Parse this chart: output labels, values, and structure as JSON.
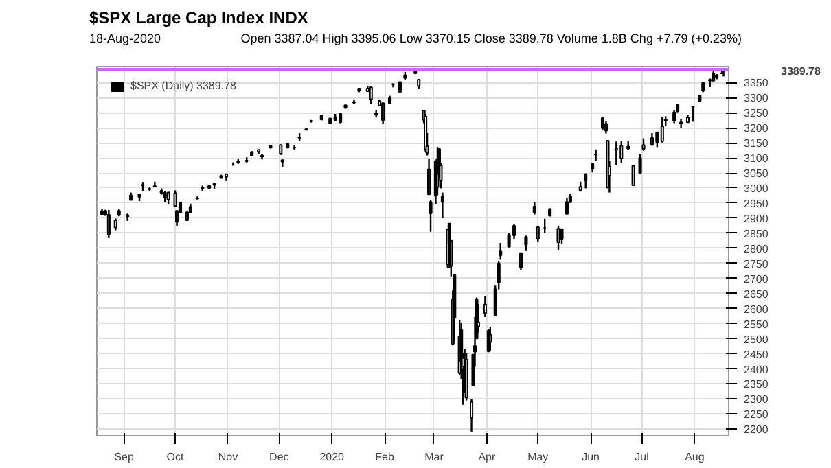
{
  "chart_data": {
    "type": "candlestick",
    "title": "$SPX Large Cap Index INDX",
    "subtitle": "18-Aug-2020",
    "annotations": [
      "Open 3387.04 High 3395.06 Low 3370.15 Close 3389.78 Volume 1.8B Chg +7.79 (+0.23%)",
      "3389.78"
    ],
    "series": [
      {
        "name": "$SPX (Daily) 3389.78",
        "color": "#000000",
        "ohlc": [
          [
            2913,
            2931,
            2913,
            2923
          ],
          [
            2910,
            2928,
            2909,
            2924
          ],
          [
            2911,
            2927,
            2834,
            2847
          ],
          [
            2893,
            2899,
            2860,
            2869
          ],
          [
            2910,
            2930,
            2906,
            2924
          ],
          [
            2910,
            2915,
            2891,
            2906
          ],
          [
            2960,
            2985,
            2960,
            2976
          ],
          [
            2971,
            2980,
            2957,
            2979
          ],
          [
            3010,
            3020,
            2991,
            3009
          ],
          [
            2996,
            3002,
            2990,
            2997
          ],
          [
            3007,
            3021,
            3003,
            3006
          ],
          [
            2984,
            2999,
            2978,
            2991
          ],
          [
            2968,
            2989,
            2953,
            2984
          ],
          [
            2985,
            2987,
            2945,
            2961
          ],
          [
            2983,
            2992,
            2938,
            2940
          ],
          [
            2924,
            2925,
            2874,
            2887
          ],
          [
            2918,
            2953,
            2917,
            2952
          ],
          [
            2920,
            2925,
            2892,
            2893
          ],
          [
            2918,
            2948,
            2917,
            2938
          ],
          [
            2965,
            2972,
            2962,
            2966
          ],
          [
            3001,
            3008,
            2991,
            2998
          ],
          [
            3000,
            3008,
            2998,
            3007
          ],
          [
            3014,
            3016,
            2997,
            3010
          ],
          [
            3033,
            3044,
            3032,
            3039
          ],
          [
            3046,
            3046,
            3023,
            3037
          ],
          [
            3078,
            3085,
            3074,
            3078
          ],
          [
            3087,
            3097,
            3080,
            3085
          ],
          [
            3089,
            3102,
            3085,
            3091
          ],
          [
            3107,
            3121,
            3105,
            3120
          ],
          [
            3127,
            3127,
            3113,
            3120
          ],
          [
            3108,
            3111,
            3095,
            3104
          ],
          [
            3134,
            3142,
            3131,
            3140
          ],
          [
            3143,
            3144,
            3110,
            3114
          ],
          [
            3087,
            3094,
            3070,
            3093
          ],
          [
            3134,
            3150,
            3134,
            3146
          ],
          [
            3135,
            3142,
            3126,
            3133
          ],
          [
            3167,
            3182,
            3156,
            3168
          ],
          [
            3195,
            3198,
            3191,
            3193
          ],
          [
            3223,
            3226,
            3217,
            3221
          ],
          [
            3227,
            3240,
            3227,
            3240
          ],
          [
            3215,
            3231,
            3212,
            3231
          ],
          [
            3226,
            3246,
            3222,
            3235
          ],
          [
            3218,
            3246,
            3215,
            3246
          ],
          [
            3266,
            3275,
            3263,
            3275
          ],
          [
            3285,
            3294,
            3278,
            3283
          ],
          [
            3323,
            3330,
            3318,
            3330
          ],
          [
            3330,
            3337,
            3320,
            3321
          ],
          [
            3334,
            3338,
            3280,
            3295
          ],
          [
            3248,
            3259,
            3234,
            3244
          ],
          [
            3289,
            3294,
            3273,
            3274
          ],
          [
            3282,
            3283,
            3214,
            3225
          ],
          [
            3280,
            3306,
            3280,
            3298
          ],
          [
            3344,
            3347,
            3334,
            3345
          ],
          [
            3319,
            3352,
            3317,
            3352
          ],
          [
            3365,
            3385,
            3360,
            3374
          ],
          [
            3380,
            3394,
            3379,
            3386
          ],
          [
            3360,
            3360,
            3328,
            3338
          ],
          [
            3257,
            3259,
            3215,
            3226
          ],
          [
            3238,
            3246,
            3118,
            3128
          ],
          [
            3139,
            3182,
            3108,
            3116
          ],
          [
            3062,
            3098,
            2977,
            2979
          ],
          [
            2916,
            2960,
            2855,
            2954
          ],
          [
            2974,
            3091,
            2946,
            3090
          ],
          [
            3096,
            3136,
            2976,
            3003
          ],
          [
            3045,
            3130,
            3034,
            3130
          ],
          [
            3075,
            3083,
            2999,
            3024
          ],
          [
            2954,
            2985,
            2901,
            2972
          ],
          [
            2863,
            2863,
            2734,
            2747
          ],
          [
            2813,
            2882,
            2734,
            2882
          ],
          [
            2825,
            2825,
            2707,
            2741
          ],
          [
            2630,
            2660,
            2478,
            2481
          ],
          [
            2569,
            2711,
            2492,
            2711
          ],
          [
            2508,
            2562,
            2380,
            2386
          ],
          [
            2425,
            2553,
            2367,
            2529
          ],
          [
            2436,
            2453,
            2281,
            2398
          ],
          [
            2393,
            2466,
            2319,
            2409
          ],
          [
            2431,
            2453,
            2295,
            2305
          ],
          [
            2290,
            2300,
            2192,
            2237
          ],
          [
            2344,
            2449,
            2344,
            2447
          ],
          [
            2457,
            2572,
            2407,
            2476
          ],
          [
            2501,
            2637,
            2500,
            2630
          ],
          [
            2555,
            2615,
            2520,
            2541
          ],
          [
            2614,
            2641,
            2572,
            2585
          ],
          [
            2458,
            2533,
            2455,
            2527
          ],
          [
            2514,
            2538,
            2459,
            2489
          ],
          [
            2578,
            2676,
            2574,
            2664
          ],
          [
            2686,
            2756,
            2664,
            2750
          ],
          [
            2776,
            2818,
            2762,
            2790
          ],
          [
            2805,
            2851,
            2805,
            2846
          ],
          [
            2843,
            2879,
            2830,
            2875
          ],
          [
            2784,
            2785,
            2727,
            2737
          ],
          [
            2812,
            2842,
            2791,
            2837
          ],
          [
            2918,
            2954,
            2912,
            2939
          ],
          [
            2870,
            2870,
            2822,
            2831
          ],
          [
            2868,
            2898,
            2852,
            2868
          ],
          [
            2908,
            2933,
            2908,
            2930
          ],
          [
            2865,
            2874,
            2793,
            2820
          ],
          [
            2829,
            2865,
            2816,
            2864
          ],
          [
            2914,
            2968,
            2913,
            2954
          ],
          [
            2953,
            2980,
            2953,
            2972
          ],
          [
            3004,
            3021,
            2988,
            2992
          ],
          [
            3025,
            3049,
            2999,
            3044
          ],
          [
            3064,
            3081,
            3052,
            3080
          ],
          [
            3111,
            3128,
            3091,
            3112
          ],
          [
            3199,
            3233,
            3193,
            3232
          ],
          [
            3213,
            3223,
            3181,
            3190
          ],
          [
            3157,
            3158,
            2999,
            3002
          ],
          [
            3071,
            3089,
            2985,
            3041
          ],
          [
            3131,
            3154,
            3076,
            3125
          ],
          [
            3140,
            3156,
            3083,
            3098
          ],
          [
            3138,
            3155,
            3127,
            3131
          ],
          [
            3074,
            3074,
            3007,
            3009
          ],
          [
            3050,
            3112,
            3047,
            3100
          ],
          [
            3143,
            3165,
            3124,
            3130
          ],
          [
            3166,
            3182,
            3140,
            3145
          ],
          [
            3152,
            3186,
            3136,
            3185
          ],
          [
            3205,
            3235,
            3151,
            3155
          ],
          [
            3225,
            3238,
            3205,
            3227
          ],
          [
            3224,
            3258,
            3215,
            3251
          ],
          [
            3254,
            3279,
            3253,
            3276
          ],
          [
            3218,
            3228,
            3198,
            3216
          ],
          [
            3234,
            3243,
            3216,
            3218
          ],
          [
            3270,
            3272,
            3220,
            3271
          ],
          [
            3289,
            3306,
            3286,
            3306
          ],
          [
            3323,
            3352,
            3318,
            3349
          ],
          [
            3356,
            3363,
            3335,
            3360
          ],
          [
            3356,
            3387,
            3355,
            3380
          ],
          [
            3368,
            3378,
            3361,
            3373
          ],
          [
            3380,
            3387,
            3379,
            3381
          ],
          [
            3387.04,
            3395.06,
            3370.15,
            3389.78
          ]
        ]
      }
    ],
    "legend": "top left",
    "grid": true,
    "ref_lines": [
      {
        "axis": "y",
        "value": 3394,
        "color": "#cc66ff"
      }
    ],
    "xlim": [
      "2019-08-16",
      "2020-08-21"
    ],
    "xticks": [
      {
        "value": "2019-09-01",
        "label": "Sep"
      },
      {
        "value": "2019-10-01",
        "label": "Oct"
      },
      {
        "value": "2019-11-01",
        "label": "Nov"
      },
      {
        "value": "2019-12-01",
        "label": "Dec"
      },
      {
        "value": "2020-01-01",
        "label": "2020"
      },
      {
        "value": "2020-02-01",
        "label": "Feb"
      },
      {
        "value": "2020-03-01",
        "label": "Mar"
      },
      {
        "value": "2020-04-01",
        "label": "Apr"
      },
      {
        "value": "2020-05-01",
        "label": "May"
      },
      {
        "value": "2020-06-01",
        "label": "Jun"
      },
      {
        "value": "2020-07-01",
        "label": "Jul"
      },
      {
        "value": "2020-08-01",
        "label": "Aug"
      }
    ],
    "ylim": [
      2178,
      3403
    ],
    "yticks": [
      2200,
      2250,
      2300,
      2350,
      2400,
      2450,
      2500,
      2550,
      2600,
      2650,
      2700,
      2750,
      2800,
      2850,
      2900,
      2950,
      3000,
      3050,
      3100,
      3150,
      3200,
      3250,
      3300,
      3350
    ],
    "x": [
      "2019-08-19",
      "2019-08-21",
      "2019-08-23",
      "2019-08-27",
      "2019-08-29",
      "2019-09-03",
      "2019-09-05",
      "2019-09-10",
      "2019-09-12",
      "2019-09-16",
      "2019-09-19",
      "2019-09-23",
      "2019-09-25",
      "2019-09-27",
      "2019-10-01",
      "2019-10-02",
      "2019-10-04",
      "2019-10-08",
      "2019-10-10",
      "2019-10-14",
      "2019-10-17",
      "2019-10-21",
      "2019-10-24",
      "2019-10-28",
      "2019-10-31",
      "2019-11-04",
      "2019-11-07",
      "2019-11-12",
      "2019-11-15",
      "2019-11-19",
      "2019-11-21",
      "2019-11-26",
      "2019-12-02",
      "2019-12-03",
      "2019-12-06",
      "2019-12-10",
      "2019-12-13",
      "2019-12-17",
      "2019-12-20",
      "2019-12-26",
      "2019-12-31",
      "2020-01-03",
      "2020-01-06",
      "2020-01-09",
      "2020-01-14",
      "2020-01-17",
      "2020-01-22",
      "2020-01-24",
      "2020-01-27",
      "2020-01-29",
      "2020-01-31",
      "2020-02-04",
      "2020-02-06",
      "2020-02-10",
      "2020-02-13",
      "2020-02-19",
      "2020-02-21",
      "2020-02-24",
      "2020-02-25",
      "2020-02-26",
      "2020-02-27",
      "2020-02-28",
      "2020-03-02",
      "2020-03-03",
      "2020-03-04",
      "2020-03-05",
      "2020-03-06",
      "2020-03-09",
      "2020-03-10",
      "2020-03-11",
      "2020-03-12",
      "2020-03-13",
      "2020-03-16",
      "2020-03-17",
      "2020-03-18",
      "2020-03-19",
      "2020-03-20",
      "2020-03-23",
      "2020-03-24",
      "2020-03-25",
      "2020-03-26",
      "2020-03-27",
      "2020-03-31",
      "2020-04-02",
      "2020-04-03",
      "2020-04-06",
      "2020-04-08",
      "2020-04-09",
      "2020-04-14",
      "2020-04-17",
      "2020-04-21",
      "2020-04-24",
      "2020-04-29",
      "2020-05-01",
      "2020-05-05",
      "2020-05-08",
      "2020-05-13",
      "2020-05-15",
      "2020-05-18",
      "2020-05-20",
      "2020-05-26",
      "2020-05-29",
      "2020-06-02",
      "2020-06-04",
      "2020-06-08",
      "2020-06-10",
      "2020-06-11",
      "2020-06-12",
      "2020-06-16",
      "2020-06-19",
      "2020-06-23",
      "2020-06-26",
      "2020-06-30",
      "2020-07-02",
      "2020-07-07",
      "2020-07-10",
      "2020-07-13",
      "2020-07-15",
      "2020-07-20",
      "2020-07-22",
      "2020-07-24",
      "2020-07-28",
      "2020-07-31",
      "2020-08-04",
      "2020-08-06",
      "2020-08-10",
      "2020-08-12",
      "2020-08-14",
      "2020-08-17",
      "2020-08-18"
    ]
  }
}
